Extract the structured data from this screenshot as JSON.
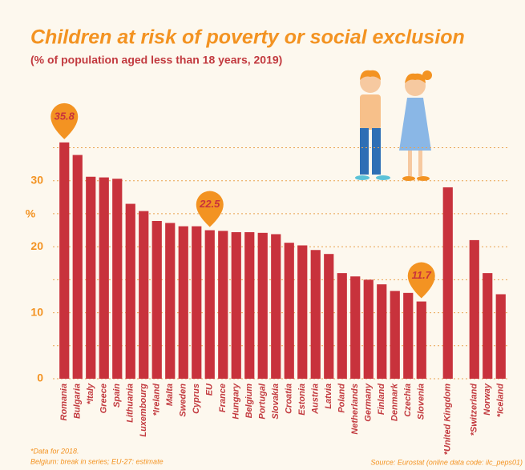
{
  "chart_data": {
    "type": "bar",
    "title": "Children at risk of poverty or social exclusion",
    "subtitle": "(% of population aged less than 18 years, 2019)",
    "y_label": "%",
    "categories": [
      "Romania",
      "Bulgaria",
      "*Italy",
      "Greece",
      "Spain",
      "Lithuania",
      "Luxembourg",
      "*Ireland",
      "Malta",
      "Sweden",
      "Cyprus",
      "EU",
      "France",
      "Hungary",
      "Belgium",
      "Portugal",
      "Slovakia",
      "Croatia",
      "Estonia",
      "Austria",
      "Latvia",
      "Poland",
      "Netherlands",
      "Germany",
      "Finland",
      "Denmark",
      "Czechia",
      "Slovenia",
      null,
      "*United Kingdom",
      null,
      "*Switzerland",
      "Norway",
      "*Iceland"
    ],
    "values": [
      35.8,
      33.9,
      30.6,
      30.5,
      30.3,
      26.5,
      25.4,
      23.9,
      23.6,
      23.1,
      23.1,
      22.5,
      22.4,
      22.2,
      22.2,
      22.1,
      21.9,
      20.6,
      20.2,
      19.5,
      18.9,
      16.0,
      15.5,
      15.0,
      14.3,
      13.3,
      13.0,
      11.7,
      null,
      29.0,
      null,
      21.0,
      16.0,
      12.8
    ],
    "value_labels": [
      "35.8",
      null,
      null,
      null,
      null,
      null,
      null,
      null,
      null,
      null,
      null,
      "22.5",
      null,
      null,
      null,
      null,
      null,
      null,
      null,
      null,
      null,
      null,
      null,
      null,
      null,
      null,
      null,
      "11.7",
      null,
      null,
      null,
      null,
      null,
      null
    ],
    "color": "#c8323c",
    "callout_color": "#f39322",
    "ylim": [
      0,
      37
    ],
    "yticks": [
      0,
      10,
      20,
      30
    ],
    "minor_yticks": [
      5,
      15,
      25,
      35
    ],
    "grid": true,
    "notes": [
      "*Data for 2018.",
      "Belgium: break in series; EU-27: estimate"
    ],
    "source": "Source: Eurostat (online data code: ilc_peps01)"
  }
}
